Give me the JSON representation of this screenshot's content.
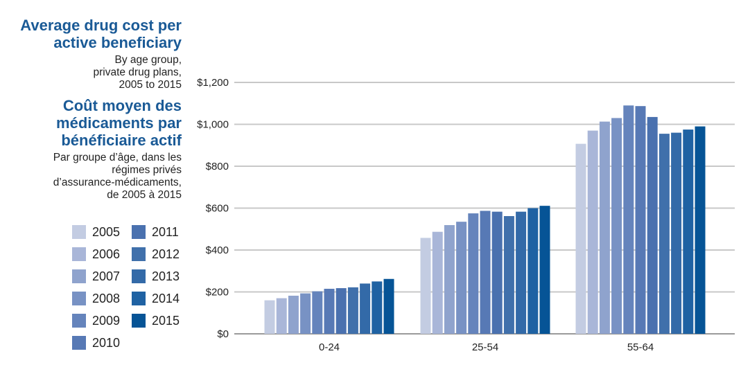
{
  "title_en": "Average drug cost per active beneficiary",
  "title_en_lines": [
    "Average drug cost per",
    "active beneficiary"
  ],
  "subtitle_en_lines": [
    "By age group,",
    "private drug plans,",
    "2005 to 2015"
  ],
  "title_fr_lines": [
    "Coût moyen des",
    "médicaments par",
    "bénéficiaire actif"
  ],
  "subtitle_fr_lines": [
    "Par groupe d’âge, dans les",
    "régimes privés",
    "d’assurance-médicaments,",
    "de 2005 à 2015"
  ],
  "chart_data": {
    "type": "bar",
    "categories": [
      "0-24",
      "25-54",
      "55-64"
    ],
    "ylim": [
      0,
      1200
    ],
    "yticks": [
      0,
      200,
      400,
      600,
      800,
      1000,
      1200
    ],
    "ytick_labels": [
      "$0",
      "$200",
      "$400",
      "$600",
      "$800",
      "$1,000",
      "$1,200"
    ],
    "grid": true,
    "legend_position": "left",
    "series": [
      {
        "name": "2005",
        "color": "#c3cce2",
        "values": [
          160,
          458,
          907
        ]
      },
      {
        "name": "2006",
        "color": "#a9b6d8",
        "values": [
          170,
          487,
          970
        ]
      },
      {
        "name": "2007",
        "color": "#8fa3cd",
        "values": [
          182,
          519,
          1013
        ]
      },
      {
        "name": "2008",
        "color": "#7892c4",
        "values": [
          193,
          535,
          1030
        ]
      },
      {
        "name": "2009",
        "color": "#6584bc",
        "values": [
          203,
          575,
          1090
        ]
      },
      {
        "name": "2010",
        "color": "#5779b5",
        "values": [
          215,
          587,
          1087
        ]
      },
      {
        "name": "2011",
        "color": "#4a71af",
        "values": [
          218,
          583,
          1035
        ]
      },
      {
        "name": "2012",
        "color": "#4070ab",
        "values": [
          222,
          562,
          955
        ]
      },
      {
        "name": "2013",
        "color": "#336aa8",
        "values": [
          240,
          583,
          960
        ]
      },
      {
        "name": "2014",
        "color": "#1f62a3",
        "values": [
          250,
          600,
          975
        ]
      },
      {
        "name": "2015",
        "color": "#065496",
        "values": [
          262,
          611,
          990
        ]
      }
    ]
  }
}
